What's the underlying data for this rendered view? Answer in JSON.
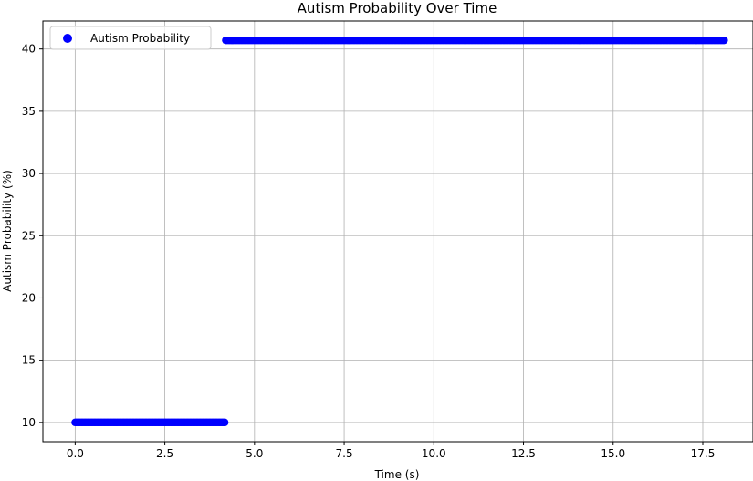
{
  "chart_data": {
    "type": "scatter",
    "title": "Autism Probability Over Time",
    "xlabel": "Time (s)",
    "ylabel": "Autism Probability (%)",
    "xlim": [
      -0.9,
      18.9
    ],
    "ylim": [
      8.45,
      42.25
    ],
    "xticks": [
      0.0,
      2.5,
      5.0,
      7.5,
      10.0,
      12.5,
      15.0,
      17.5
    ],
    "xtick_labels": [
      "0.0",
      "2.5",
      "5.0",
      "7.5",
      "10.0",
      "12.5",
      "15.0",
      "17.5"
    ],
    "yticks": [
      10,
      15,
      20,
      25,
      30,
      35,
      40
    ],
    "ytick_labels": [
      "10",
      "15",
      "20",
      "25",
      "30",
      "35",
      "40"
    ],
    "grid": true,
    "legend_position": "top-left",
    "series": [
      {
        "name": "Autism Probability",
        "color": "#0000ff",
        "segments": [
          {
            "x_start": 0.0,
            "x_end": 4.2,
            "y": 10.0
          },
          {
            "x_start": 4.2,
            "x_end": 18.1,
            "y": 40.7
          }
        ]
      }
    ]
  }
}
